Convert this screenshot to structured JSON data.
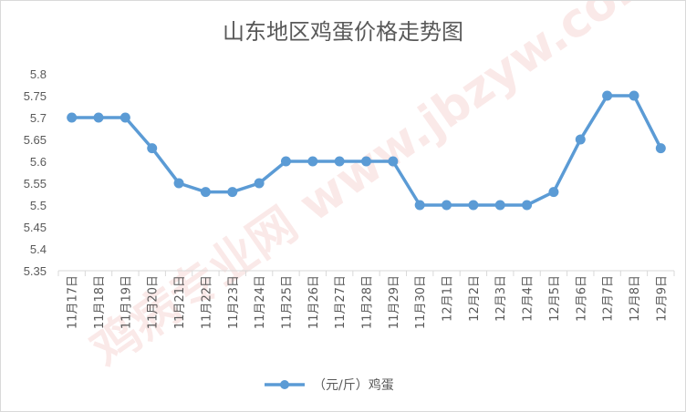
{
  "chart_data": {
    "type": "line",
    "title": "山东地区鸡蛋价格走势图",
    "xlabel": "",
    "ylabel": "",
    "categories": [
      "11月17日",
      "11月18日",
      "11月19日",
      "11月20日",
      "11月21日",
      "11月22日",
      "11月23日",
      "11月24日",
      "11月25日",
      "11月26日",
      "11月27日",
      "11月28日",
      "11月29日",
      "11月30日",
      "12月1日",
      "12月2日",
      "12月3日",
      "12月4日",
      "12月5日",
      "12月6日",
      "12月7日",
      "12月8日",
      "12月9日"
    ],
    "series": [
      {
        "name": "（元/斤）鸡蛋",
        "color": "#5b9bd5",
        "values": [
          5.7,
          5.7,
          5.7,
          5.63,
          5.55,
          5.53,
          5.53,
          5.55,
          5.6,
          5.6,
          5.6,
          5.6,
          5.6,
          5.5,
          5.5,
          5.5,
          5.5,
          5.5,
          5.53,
          5.65,
          5.75,
          5.75,
          5.63
        ]
      }
    ],
    "ylim": [
      5.35,
      5.8
    ],
    "yticks": [
      "5.35",
      "5.4",
      "5.45",
      "5.5",
      "5.55",
      "5.6",
      "5.65",
      "5.7",
      "5.75",
      "5.8"
    ],
    "grid": false,
    "legend_position": "bottom",
    "watermark": "鸡病专业网 www.jbzyw.com"
  }
}
